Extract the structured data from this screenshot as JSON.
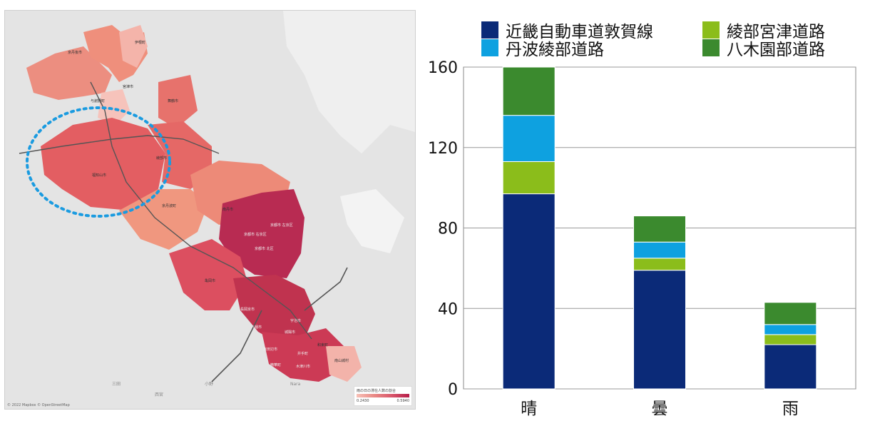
{
  "map": {
    "legend_title": "雨の日の滞在人数の割合",
    "legend_min": "0.2430",
    "legend_max": "0.5940",
    "credit": "© 2022 Mapbox © OpenStreetMap",
    "labels": [
      "伊根町",
      "京丹後市",
      "宮津市",
      "与謝野町",
      "舞鶴市",
      "綾部市",
      "福知山市",
      "京丹波町",
      "南丹市",
      "京都市 右京区",
      "京都市 左京区",
      "京都市 北区",
      "亀岡市",
      "宇治市",
      "城陽市",
      "京田辺市",
      "和束町",
      "南山城村",
      "木津川市",
      "精華町",
      "長岡京市",
      "八幡市",
      "井手町"
    ],
    "place_labels": [
      "Nara",
      "小野",
      "三田",
      "西宮"
    ]
  },
  "chart_data": {
    "type": "bar",
    "stacked": true,
    "categories": [
      "晴",
      "曇",
      "雨"
    ],
    "series": [
      {
        "name": "近畿自動車道敦賀線",
        "color": "#0b2a78",
        "values": [
          97,
          59,
          22
        ]
      },
      {
        "name": "綾部宮津道路",
        "color": "#8bbd1b",
        "values": [
          16,
          6,
          5
        ]
      },
      {
        "name": "丹波綾部道路",
        "color": "#0ea1e0",
        "values": [
          23,
          8,
          5
        ]
      },
      {
        "name": "八木園部道路",
        "color": "#3b8a2e",
        "values": [
          24,
          13,
          11
        ]
      }
    ],
    "ylim": [
      0,
      160
    ],
    "yticks": [
      "0",
      "40",
      "80",
      "120",
      "160"
    ],
    "grid": true,
    "legend_position": "top"
  }
}
